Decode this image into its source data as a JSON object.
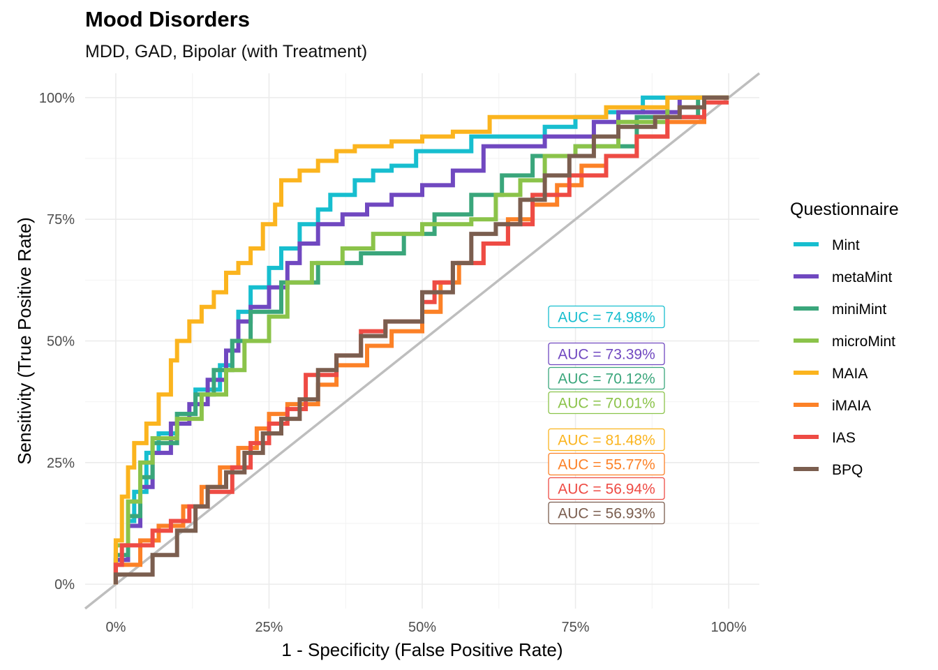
{
  "title": "Mood Disorders",
  "subtitle": "MDD, GAD, Bipolar (with Treatment)",
  "chart_data": {
    "type": "line",
    "title": "Mood Disorders",
    "subtitle": "MDD, GAD, Bipolar (with Treatment)",
    "xlabel": "1 - Specificity (False Positive Rate)",
    "ylabel": "Sensitivity (True Positive Rate)",
    "xlim": [
      -0.05,
      1.05
    ],
    "ylim": [
      -0.05,
      1.05
    ],
    "xticks": [
      0,
      0.25,
      0.5,
      0.75,
      1
    ],
    "yticks": [
      0,
      0.25,
      0.5,
      0.75,
      1
    ],
    "xtick_labels": [
      "0%",
      "25%",
      "50%",
      "75%",
      "100%"
    ],
    "ytick_labels": [
      "0%",
      "25%",
      "50%",
      "75%",
      "100%"
    ],
    "grid": true,
    "legend_title": "Questionnaire",
    "legend_position": "right",
    "reference_line": {
      "x": [
        -0.05,
        1.05
      ],
      "y": [
        -0.05,
        1.05
      ],
      "color": "#bebebe"
    },
    "series": [
      {
        "name": "Mint",
        "color": "#17becf",
        "auc_label": "AUC = 74.98%",
        "x": [
          0,
          0,
          0.02,
          0.02,
          0.03,
          0.03,
          0.05,
          0.05,
          0.07,
          0.07,
          0.1,
          0.1,
          0.13,
          0.13,
          0.17,
          0.17,
          0.19,
          0.19,
          0.2,
          0.2,
          0.22,
          0.22,
          0.25,
          0.25,
          0.27,
          0.27,
          0.3,
          0.3,
          0.33,
          0.33,
          0.35,
          0.35,
          0.39,
          0.39,
          0.42,
          0.42,
          0.45,
          0.45,
          0.49,
          0.49,
          0.58,
          0.58,
          0.7,
          0.7,
          0.75,
          0.75,
          0.8,
          0.8,
          0.86,
          0.86,
          0.9,
          0.9,
          1
        ],
        "y": [
          0,
          0.05,
          0.05,
          0.13,
          0.13,
          0.19,
          0.19,
          0.27,
          0.27,
          0.31,
          0.31,
          0.35,
          0.35,
          0.4,
          0.4,
          0.45,
          0.45,
          0.5,
          0.5,
          0.56,
          0.56,
          0.61,
          0.61,
          0.65,
          0.65,
          0.69,
          0.69,
          0.74,
          0.74,
          0.77,
          0.77,
          0.8,
          0.8,
          0.83,
          0.83,
          0.85,
          0.85,
          0.86,
          0.86,
          0.89,
          0.89,
          0.92,
          0.92,
          0.94,
          0.94,
          0.96,
          0.96,
          0.97,
          0.97,
          1,
          1,
          1,
          1
        ]
      },
      {
        "name": "metaMint",
        "color": "#7048c0",
        "auc_label": "AUC = 73.39%",
        "x": [
          0,
          0,
          0.02,
          0.02,
          0.04,
          0.04,
          0.06,
          0.06,
          0.09,
          0.09,
          0.12,
          0.12,
          0.15,
          0.15,
          0.18,
          0.18,
          0.2,
          0.2,
          0.22,
          0.22,
          0.25,
          0.25,
          0.28,
          0.28,
          0.3,
          0.3,
          0.33,
          0.33,
          0.37,
          0.37,
          0.41,
          0.41,
          0.45,
          0.45,
          0.5,
          0.5,
          0.55,
          0.55,
          0.6,
          0.6,
          0.62,
          0.62,
          0.7,
          0.7,
          0.78,
          0.78,
          0.82,
          0.82,
          0.92,
          0.92,
          1
        ],
        "y": [
          0,
          0.05,
          0.05,
          0.12,
          0.12,
          0.2,
          0.2,
          0.27,
          0.27,
          0.33,
          0.33,
          0.37,
          0.37,
          0.42,
          0.42,
          0.48,
          0.48,
          0.54,
          0.54,
          0.57,
          0.57,
          0.61,
          0.61,
          0.66,
          0.66,
          0.7,
          0.7,
          0.74,
          0.74,
          0.76,
          0.76,
          0.78,
          0.78,
          0.8,
          0.8,
          0.82,
          0.82,
          0.85,
          0.85,
          0.9,
          0.9,
          0.9,
          0.9,
          0.92,
          0.92,
          0.95,
          0.95,
          0.97,
          0.97,
          1,
          1
        ]
      },
      {
        "name": "miniMint",
        "color": "#3aa67b",
        "auc_label": "AUC = 70.12%",
        "x": [
          0,
          0,
          0.02,
          0.02,
          0.04,
          0.04,
          0.06,
          0.06,
          0.1,
          0.1,
          0.13,
          0.13,
          0.16,
          0.16,
          0.19,
          0.19,
          0.22,
          0.22,
          0.27,
          0.27,
          0.33,
          0.33,
          0.4,
          0.4,
          0.47,
          0.47,
          0.52,
          0.52,
          0.58,
          0.58,
          0.63,
          0.63,
          0.68,
          0.68,
          0.75,
          0.75,
          0.85,
          0.85,
          0.95,
          0.95,
          1
        ],
        "y": [
          0,
          0.06,
          0.06,
          0.14,
          0.14,
          0.22,
          0.22,
          0.29,
          0.29,
          0.35,
          0.35,
          0.39,
          0.39,
          0.44,
          0.44,
          0.5,
          0.5,
          0.56,
          0.56,
          0.62,
          0.62,
          0.66,
          0.66,
          0.68,
          0.68,
          0.72,
          0.72,
          0.76,
          0.76,
          0.8,
          0.8,
          0.84,
          0.84,
          0.88,
          0.88,
          0.9,
          0.9,
          0.96,
          0.96,
          1,
          1
        ]
      },
      {
        "name": "microMint",
        "color": "#8bc34a",
        "auc_label": "AUC = 70.01%",
        "x": [
          0,
          0,
          0.02,
          0.02,
          0.04,
          0.04,
          0.06,
          0.06,
          0.1,
          0.1,
          0.14,
          0.14,
          0.18,
          0.18,
          0.21,
          0.21,
          0.25,
          0.25,
          0.28,
          0.28,
          0.32,
          0.32,
          0.37,
          0.37,
          0.42,
          0.42,
          0.5,
          0.5,
          0.58,
          0.58,
          0.62,
          0.62,
          0.66,
          0.66,
          0.7,
          0.7,
          0.75,
          0.75,
          0.82,
          0.82,
          0.9,
          0.9,
          1
        ],
        "y": [
          0,
          0.08,
          0.08,
          0.17,
          0.17,
          0.25,
          0.25,
          0.3,
          0.3,
          0.34,
          0.34,
          0.39,
          0.39,
          0.44,
          0.44,
          0.5,
          0.5,
          0.55,
          0.55,
          0.62,
          0.62,
          0.66,
          0.66,
          0.69,
          0.69,
          0.72,
          0.72,
          0.74,
          0.74,
          0.75,
          0.75,
          0.8,
          0.8,
          0.83,
          0.83,
          0.88,
          0.88,
          0.9,
          0.9,
          0.95,
          0.95,
          1,
          1
        ]
      },
      {
        "name": "MAIA",
        "color": "#fbb41e",
        "auc_label": "AUC = 81.48%",
        "x": [
          0,
          0,
          0.01,
          0.01,
          0.02,
          0.02,
          0.03,
          0.03,
          0.05,
          0.05,
          0.07,
          0.07,
          0.09,
          0.09,
          0.1,
          0.1,
          0.12,
          0.12,
          0.14,
          0.14,
          0.16,
          0.16,
          0.18,
          0.18,
          0.2,
          0.2,
          0.22,
          0.22,
          0.24,
          0.24,
          0.26,
          0.26,
          0.27,
          0.27,
          0.3,
          0.3,
          0.33,
          0.33,
          0.36,
          0.36,
          0.39,
          0.39,
          0.45,
          0.45,
          0.5,
          0.5,
          0.55,
          0.55,
          0.61,
          0.61,
          0.7,
          0.7,
          0.8,
          0.8,
          0.9,
          0.9,
          1
        ],
        "y": [
          0,
          0.09,
          0.09,
          0.18,
          0.18,
          0.24,
          0.24,
          0.29,
          0.29,
          0.33,
          0.33,
          0.39,
          0.39,
          0.46,
          0.46,
          0.5,
          0.5,
          0.54,
          0.54,
          0.57,
          0.57,
          0.6,
          0.6,
          0.64,
          0.64,
          0.66,
          0.66,
          0.69,
          0.69,
          0.74,
          0.74,
          0.78,
          0.78,
          0.83,
          0.83,
          0.85,
          0.85,
          0.87,
          0.87,
          0.89,
          0.89,
          0.9,
          0.9,
          0.91,
          0.91,
          0.92,
          0.92,
          0.93,
          0.93,
          0.96,
          0.96,
          0.96,
          0.96,
          0.98,
          0.98,
          1,
          1
        ]
      },
      {
        "name": "iMAIA",
        "color": "#fc8127",
        "auc_label": "AUC = 55.77%",
        "x": [
          0,
          0,
          0.04,
          0.04,
          0.07,
          0.07,
          0.11,
          0.11,
          0.14,
          0.14,
          0.17,
          0.17,
          0.2,
          0.2,
          0.23,
          0.23,
          0.25,
          0.25,
          0.28,
          0.28,
          0.33,
          0.33,
          0.36,
          0.36,
          0.41,
          0.41,
          0.45,
          0.45,
          0.5,
          0.5,
          0.53,
          0.53,
          0.56,
          0.56,
          0.6,
          0.6,
          0.64,
          0.64,
          0.68,
          0.68,
          0.72,
          0.72,
          0.76,
          0.76,
          0.8,
          0.8,
          0.85,
          0.85,
          0.9,
          0.9,
          0.96,
          0.96,
          1
        ],
        "y": [
          0,
          0.04,
          0.04,
          0.09,
          0.09,
          0.12,
          0.12,
          0.16,
          0.16,
          0.2,
          0.2,
          0.24,
          0.24,
          0.28,
          0.28,
          0.32,
          0.32,
          0.35,
          0.35,
          0.37,
          0.37,
          0.41,
          0.41,
          0.45,
          0.45,
          0.49,
          0.49,
          0.52,
          0.52,
          0.56,
          0.56,
          0.62,
          0.62,
          0.66,
          0.66,
          0.7,
          0.7,
          0.75,
          0.75,
          0.78,
          0.78,
          0.82,
          0.82,
          0.86,
          0.86,
          0.88,
          0.88,
          0.92,
          0.92,
          0.95,
          0.95,
          1,
          1
        ]
      },
      {
        "name": "IAS",
        "color": "#ee4b44",
        "auc_label": "AUC = 56.94%",
        "x": [
          0,
          0,
          0.01,
          0.01,
          0.06,
          0.06,
          0.09,
          0.09,
          0.12,
          0.12,
          0.15,
          0.15,
          0.19,
          0.19,
          0.22,
          0.22,
          0.25,
          0.25,
          0.28,
          0.28,
          0.31,
          0.31,
          0.36,
          0.36,
          0.4,
          0.4,
          0.44,
          0.44,
          0.5,
          0.5,
          0.52,
          0.52,
          0.55,
          0.55,
          0.6,
          0.6,
          0.64,
          0.64,
          0.68,
          0.68,
          0.74,
          0.74,
          0.8,
          0.8,
          0.85,
          0.85,
          0.9,
          0.9,
          0.96,
          0.96,
          1
        ],
        "y": [
          0,
          0.04,
          0.04,
          0.08,
          0.08,
          0.11,
          0.11,
          0.13,
          0.13,
          0.16,
          0.16,
          0.19,
          0.19,
          0.24,
          0.24,
          0.29,
          0.29,
          0.33,
          0.33,
          0.36,
          0.36,
          0.43,
          0.43,
          0.47,
          0.47,
          0.52,
          0.52,
          0.54,
          0.54,
          0.58,
          0.58,
          0.62,
          0.62,
          0.66,
          0.66,
          0.7,
          0.7,
          0.74,
          0.74,
          0.8,
          0.8,
          0.84,
          0.84,
          0.88,
          0.88,
          0.92,
          0.92,
          0.96,
          0.96,
          0.99,
          0.99
        ]
      },
      {
        "name": "BPQ",
        "color": "#7b5e4f",
        "auc_label": "AUC = 56.93%",
        "x": [
          0,
          0,
          0.06,
          0.06,
          0.1,
          0.1,
          0.13,
          0.13,
          0.15,
          0.15,
          0.18,
          0.18,
          0.21,
          0.21,
          0.24,
          0.24,
          0.27,
          0.27,
          0.3,
          0.3,
          0.33,
          0.33,
          0.36,
          0.36,
          0.4,
          0.4,
          0.44,
          0.44,
          0.5,
          0.5,
          0.55,
          0.55,
          0.58,
          0.58,
          0.62,
          0.62,
          0.66,
          0.66,
          0.7,
          0.7,
          0.74,
          0.74,
          0.78,
          0.78,
          0.82,
          0.82,
          0.88,
          0.88,
          0.92,
          0.92,
          0.96,
          0.96,
          1
        ],
        "y": [
          0,
          0.02,
          0.02,
          0.06,
          0.06,
          0.11,
          0.11,
          0.16,
          0.16,
          0.2,
          0.2,
          0.23,
          0.23,
          0.27,
          0.27,
          0.31,
          0.31,
          0.34,
          0.34,
          0.38,
          0.38,
          0.44,
          0.44,
          0.47,
          0.47,
          0.51,
          0.51,
          0.54,
          0.54,
          0.6,
          0.6,
          0.66,
          0.66,
          0.72,
          0.72,
          0.74,
          0.74,
          0.79,
          0.79,
          0.84,
          0.84,
          0.88,
          0.88,
          0.92,
          0.92,
          0.94,
          0.94,
          0.96,
          0.96,
          0.98,
          0.98,
          1,
          1
        ]
      }
    ]
  }
}
